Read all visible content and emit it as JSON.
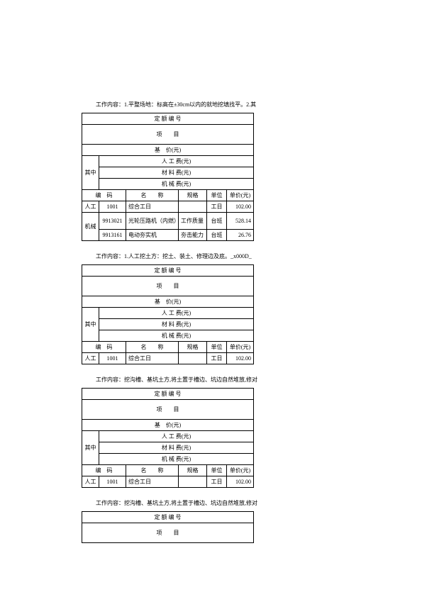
{
  "b1": {
    "desc": "工作内容：1.平整场地：标高在±30cm以内的就地挖填找平。2.其",
    "head": {
      "quotaNo": "定 额 编 号",
      "item": "项　　目",
      "basePrice": "基　价(元)",
      "labor": "人 工 费(元)",
      "material": "材 料 费(元)",
      "machine": "机 械 费(元)",
      "code": "编　码",
      "name": "名　　称",
      "spec": "规格",
      "unit": "单位",
      "price": "单价(元)",
      "qizhong": "其中"
    },
    "rows": [
      {
        "cat": "人工",
        "code": "1001",
        "name": "综合工日",
        "spec": "",
        "unit": "工日",
        "price": "102.00"
      },
      {
        "cat": "机械",
        "code": "9913021",
        "name": "光轮压路机（内燃）",
        "spec": "工作质量",
        "unit": "台班",
        "price": "528.14"
      },
      {
        "code": "9913161",
        "name": "电动夯实机",
        "spec": "夯击能力",
        "unit": "台班",
        "price": "26.76"
      }
    ]
  },
  "b2": {
    "desc": "工作内容：1.人工挖土方：挖土、装土、修理边及底。_x000D_",
    "head": {
      "quotaNo": "定 额 编 号",
      "item": "项　　目",
      "basePrice": "基　价(元)",
      "labor": "人 工 费(元)",
      "material": "材 料 费(元)",
      "machine": "机 械 费(元)",
      "code": "编　码",
      "name": "名　　称",
      "spec": "规格",
      "unit": "单位",
      "price": "单价(元)",
      "qizhong": "其中"
    },
    "rows": [
      {
        "cat": "人工",
        "code": "1001",
        "name": "综合工日",
        "spec": "",
        "unit": "工日",
        "price": "102.00"
      }
    ]
  },
  "b3": {
    "desc": "工作内容：挖沟槽、基坑土方,将土置于槽边、坑边自然堆放,修对",
    "head": {
      "quotaNo": "定 额 编 号",
      "item": "项　　目",
      "basePrice": "基　价(元)",
      "labor": "人 工 费(元)",
      "material": "材 料 费(元)",
      "machine": "机 械 费(元)",
      "code": "编　码",
      "name": "名　　称",
      "spec": "规格",
      "unit": "单位",
      "price": "单价(元)",
      "qizhong": "其中"
    },
    "rows": [
      {
        "cat": "人工",
        "code": "1001",
        "name": "综合工日",
        "spec": "",
        "unit": "工日",
        "price": "102.00"
      }
    ]
  },
  "b4": {
    "desc": "工作内容：挖沟槽、基坑土方,将土置于槽边、坑边自然堆放,修对",
    "head": {
      "quotaNo": "定 额 编 号",
      "item": "项　　目"
    }
  }
}
